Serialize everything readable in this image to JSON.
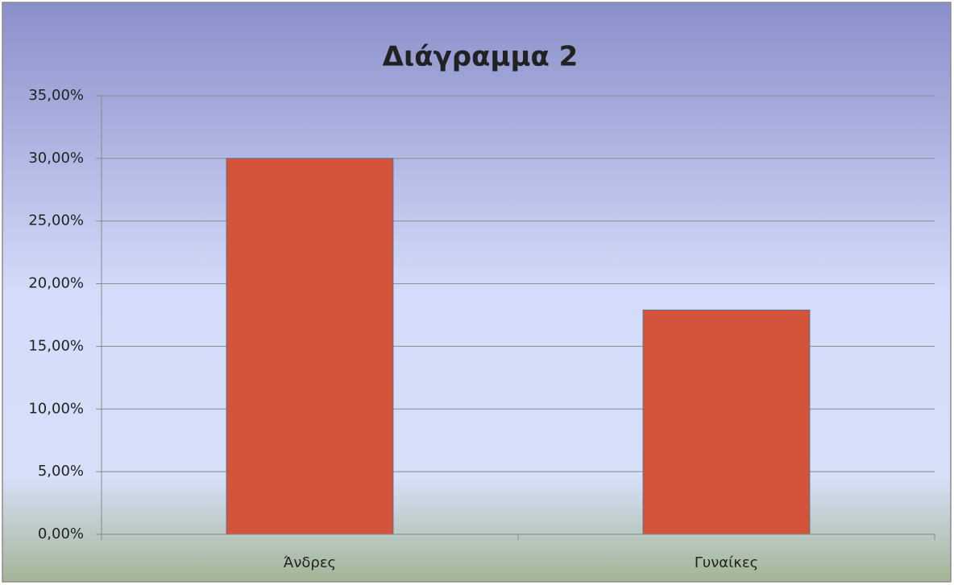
{
  "chart_data": {
    "type": "bar",
    "title": "Διάγραμμα 2",
    "categories": [
      "Άνδρες",
      "Γυναίκες"
    ],
    "values": [
      30,
      17.9
    ],
    "color": "#d4533b",
    "ylim": [
      0,
      35
    ],
    "yticks": [
      {
        "value": 0,
        "label": "0,00%"
      },
      {
        "value": 5,
        "label": "5,00%"
      },
      {
        "value": 10,
        "label": "10,00%"
      },
      {
        "value": 15,
        "label": "15,00%"
      },
      {
        "value": 20,
        "label": "20,00%"
      },
      {
        "value": 25,
        "label": "25,00%"
      },
      {
        "value": 30,
        "label": "30,00%"
      },
      {
        "value": 35,
        "label": "35,00%"
      }
    ],
    "grid": true
  }
}
